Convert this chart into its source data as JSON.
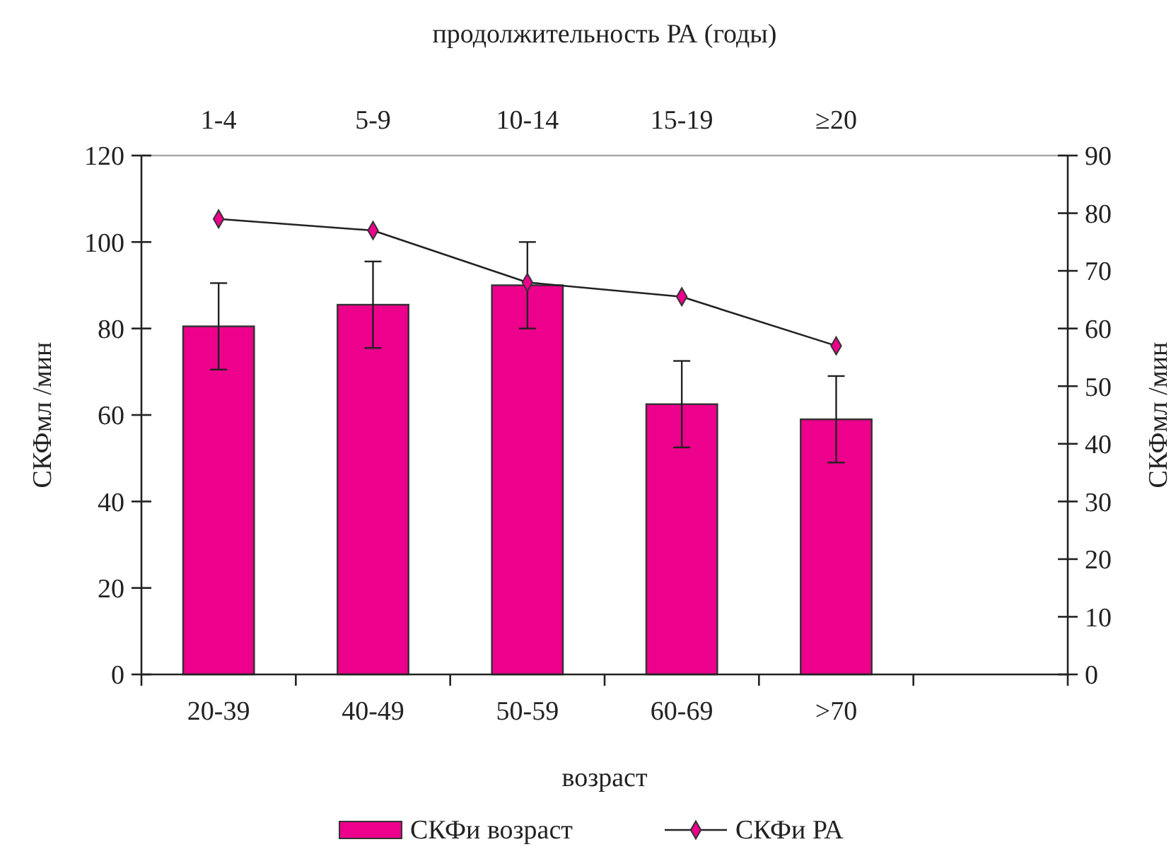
{
  "chart_data": {
    "type": "bar",
    "categories": [
      "20-39",
      "40-49",
      "50-59",
      "60-69",
      ">70",
      null
    ],
    "xlabel": "возраст",
    "ylabel": "СКФмл /мин",
    "y2label": "СКФмл /мин",
    "x2label": "продолжительность  РА (годы)",
    "ylim": [
      0,
      120
    ],
    "yticks": [
      0,
      20,
      40,
      60,
      80,
      100,
      120
    ],
    "y2lim": [
      0,
      90
    ],
    "y2ticks": [
      0,
      10,
      20,
      30,
      40,
      50,
      60,
      70,
      80,
      90
    ],
    "annotations": [
      "1-4",
      "5-9",
      "10-14",
      "15-19",
      "≥20"
    ],
    "series": [
      {
        "name": "СКФи возраст",
        "color": "#ec008c",
        "values": [
          80.5,
          85.5,
          90,
          62.5,
          59,
          null
        ],
        "errors": [
          10,
          10,
          10,
          10,
          10,
          null
        ]
      },
      {
        "name": "СКФи РА",
        "type": "line",
        "axis": "y2",
        "color": "#ec008c",
        "marker": "diamond",
        "values": [
          79,
          77,
          68,
          65.5,
          57,
          null
        ]
      }
    ],
    "legend": "bottom",
    "grid": false
  }
}
